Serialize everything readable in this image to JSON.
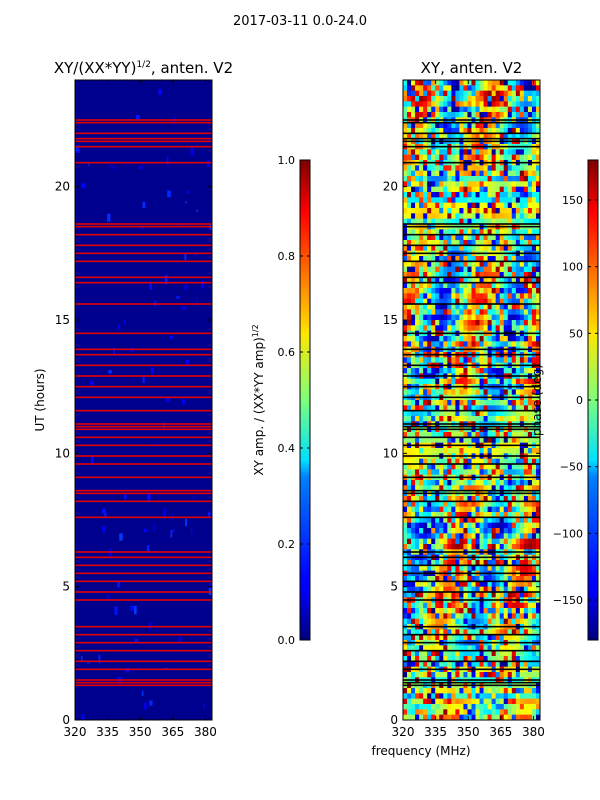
{
  "figure": {
    "suptitle": "2017-03-11 0.0-24.0"
  },
  "chart_data": [
    {
      "type": "heatmap",
      "title": "XY/(XX*YY)",
      "title_sup": "1/2",
      "title_suffix": ", anten. V2",
      "xlabel": "",
      "ylabel": "UT (hours)",
      "xlim": [
        320,
        383
      ],
      "ylim": [
        0,
        24
      ],
      "xticks": [
        320,
        335,
        350,
        365,
        380
      ],
      "yticks": [
        0,
        5,
        10,
        15,
        20
      ],
      "colorbar": {
        "label": "XY amp. / (XX*YY amp)",
        "label_sup": "1/2",
        "range": [
          0.0,
          1.0
        ],
        "ticks": [
          "0.0",
          "0.2",
          "0.4",
          "0.6",
          "0.8",
          "1.0"
        ],
        "colormap": "jet"
      },
      "background_value": 0.08,
      "red_rows_hours": [
        22.5,
        22.4,
        22.0,
        21.8,
        21.7,
        21.5,
        20.9,
        18.6,
        18.5,
        18.2,
        17.8,
        17.5,
        17.2,
        16.6,
        16.4,
        15.6,
        14.5,
        13.9,
        13.7,
        13.3,
        12.9,
        12.5,
        12.1,
        11.6,
        11.1,
        11.0,
        10.9,
        10.6,
        10.3,
        9.9,
        9.6,
        9.1,
        8.6,
        8.5,
        8.2,
        7.6,
        6.3,
        6.1,
        5.8,
        5.5,
        5.2,
        4.8,
        4.5,
        3.5,
        3.2,
        2.9,
        2.6,
        2.2,
        1.9,
        1.5,
        1.4,
        1.3
      ]
    },
    {
      "type": "heatmap",
      "title": "XY, anten. V2",
      "xlabel": "frequency (MHz)",
      "ylabel": "",
      "xlim": [
        320,
        383
      ],
      "ylim": [
        0,
        24
      ],
      "xticks": [
        320,
        335,
        350,
        365,
        380
      ],
      "yticks": [
        0,
        5,
        10,
        15,
        20
      ],
      "colorbar": {
        "label": "phase (deg)",
        "range": [
          -180,
          180
        ],
        "ticks": [
          "−150",
          "−100",
          "−50",
          "0",
          "50",
          "100",
          "150"
        ],
        "tick_values": [
          -150,
          -100,
          -50,
          0,
          50,
          100,
          150
        ],
        "colormap": "jet"
      },
      "black_rows_hours": [
        22.5,
        22.4,
        22.0,
        21.8,
        21.7,
        21.5,
        20.9,
        18.6,
        18.5,
        18.2,
        17.8,
        17.5,
        17.2,
        16.6,
        16.4,
        15.6,
        14.5,
        13.9,
        13.7,
        13.3,
        12.9,
        12.5,
        12.1,
        11.6,
        11.1,
        11.0,
        10.9,
        10.6,
        10.3,
        9.9,
        9.6,
        9.1,
        8.6,
        8.5,
        8.2,
        7.6,
        6.3,
        6.1,
        5.8,
        5.5,
        5.2,
        4.8,
        4.5,
        3.5,
        3.2,
        2.9,
        2.6,
        2.2,
        1.9,
        1.5,
        1.4,
        1.3
      ]
    }
  ]
}
